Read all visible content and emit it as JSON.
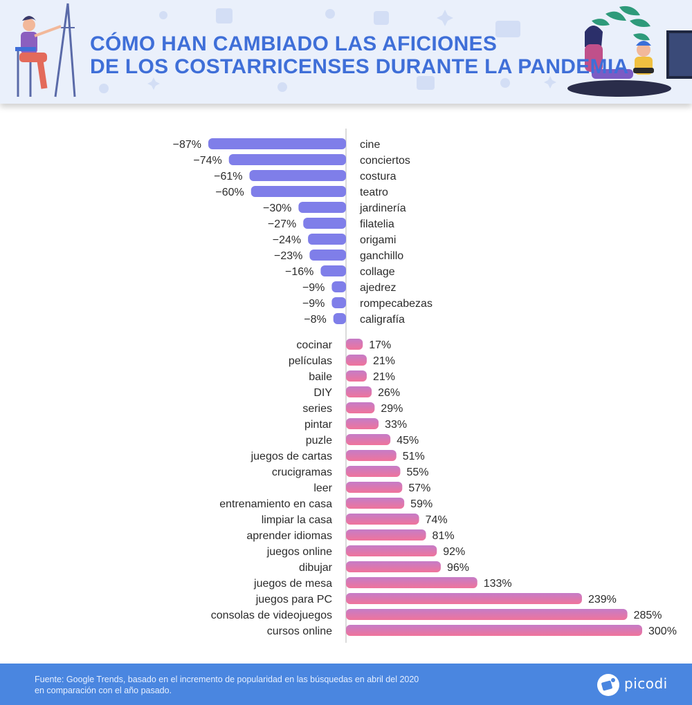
{
  "header": {
    "title_line1": "CÓMO HAN CAMBIADO LAS AFICIONES",
    "title_line2": "DE LOS COSTARRICENSES DURANTE LA PANDEMIA"
  },
  "footer": {
    "source_line1": "Fuente: Google Trends, basado en el incremento de popularidad en las búsquedas en abril del 2020",
    "source_line2": "en comparación con el año pasado.",
    "brand": "picodi"
  },
  "colors": {
    "title": "#3f6fd8",
    "negative_bar": "#7f7ee9",
    "positive_bar_start": "#c57cc7",
    "positive_bar_end": "#f0749b",
    "footer_bg": "#4a86e0",
    "text": "#2b2b2b"
  },
  "chart_data": {
    "type": "bar",
    "orientation": "horizontal",
    "unit": "%",
    "series": [
      {
        "categories": [
          "cine",
          "conciertos",
          "costura",
          "teatro",
          "jardinería",
          "filatelia",
          "origami",
          "ganchillo",
          "collage",
          "ajedrez",
          "rompecabezas",
          "caligrafía"
        ],
        "values": [
          -87,
          -74,
          -61,
          -60,
          -30,
          -27,
          -24,
          -23,
          -16,
          -9,
          -9,
          -8
        ],
        "labels": [
          "−87%",
          "−74%",
          "−61%",
          "−60%",
          "−30%",
          "−27%",
          "−24%",
          "−23%",
          "−16%",
          "−9%",
          "−9%",
          "−8%"
        ]
      },
      {
        "categories": [
          "cocinar",
          "películas",
          "baile",
          "DIY",
          "series",
          "pintar",
          "puzle",
          "juegos de cartas",
          "crucigramas",
          "leer",
          "entrenamiento en casa",
          "limpiar la casa",
          "aprender idiomas",
          "juegos online",
          "dibujar",
          "juegos de mesa",
          "juegos para PC",
          "consolas de videojuegos",
          "cursos online"
        ],
        "values": [
          17,
          21,
          21,
          26,
          29,
          33,
          45,
          51,
          55,
          57,
          59,
          74,
          81,
          92,
          96,
          133,
          239,
          285,
          300
        ],
        "labels": [
          "17%",
          "21%",
          "21%",
          "26%",
          "29%",
          "33%",
          "45%",
          "51%",
          "55%",
          "57%",
          "59%",
          "74%",
          "81%",
          "92%",
          "96%",
          "133%",
          "239%",
          "285%",
          "300%"
        ]
      }
    ]
  }
}
